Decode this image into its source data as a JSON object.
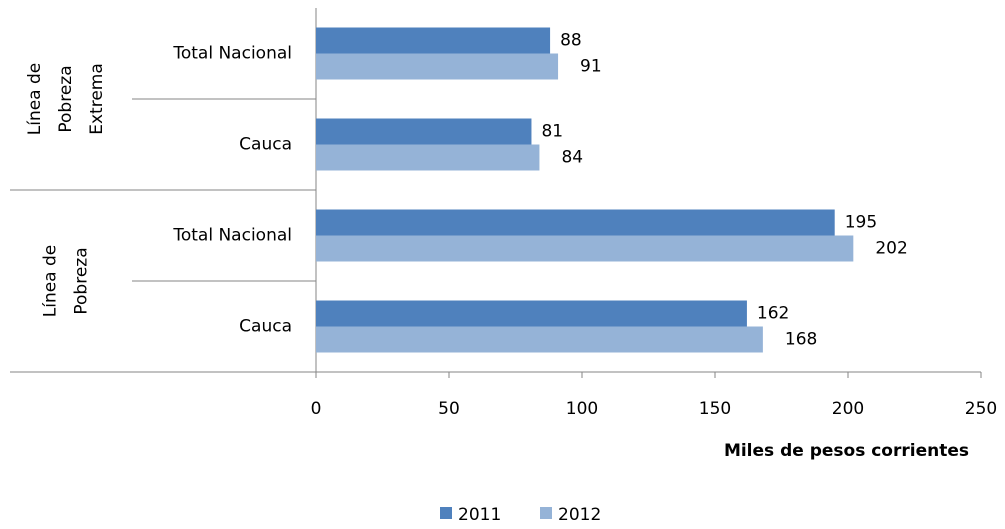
{
  "chart_data": {
    "type": "bar",
    "orientation": "horizontal",
    "categories": [
      "Total Nacional",
      "Cauca",
      "Total Nacional",
      "Cauca"
    ],
    "groups": [
      {
        "label_lines": [
          "Línea de",
          "Pobreza",
          "Extrema"
        ],
        "categories": [
          "Total Nacional",
          "Cauca"
        ]
      },
      {
        "label_lines": [
          "Línea de",
          "Pobreza"
        ],
        "categories": [
          "Total Nacional",
          "Cauca"
        ]
      }
    ],
    "series": [
      {
        "name": "2011",
        "values": [
          88,
          81,
          195,
          162
        ],
        "color": "#4F81BD"
      },
      {
        "name": "2012",
        "values": [
          91,
          84,
          202,
          168
        ],
        "color": "#95B3D7"
      }
    ],
    "xlabel": "Miles de pesos corrientes",
    "xlim": [
      0,
      250
    ],
    "xticks": [
      0,
      50,
      100,
      150,
      200,
      250
    ],
    "grid": false,
    "legend_position": "bottom"
  }
}
